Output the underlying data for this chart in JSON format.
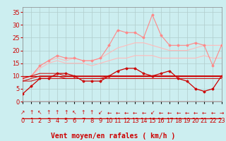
{
  "x": [
    0,
    1,
    2,
    3,
    4,
    5,
    6,
    7,
    8,
    9,
    10,
    11,
    12,
    13,
    14,
    15,
    16,
    17,
    18,
    19,
    20,
    21,
    22,
    23
  ],
  "background_color": "#cceef0",
  "grid_color": "#b0cccc",
  "xlabel": "Vent moyen/en rafales ( km/h )",
  "xlabel_color": "#cc0000",
  "xlabel_fontsize": 7,
  "ylim": [
    0,
    37
  ],
  "yticks": [
    0,
    5,
    10,
    15,
    20,
    25,
    30,
    35
  ],
  "line_spiky": [
    9,
    10,
    14,
    16,
    18,
    17,
    17,
    16,
    16,
    17,
    22,
    28,
    27,
    27,
    25,
    34,
    26,
    22,
    22,
    22,
    23,
    22,
    14,
    22
  ],
  "line_spiky_color": "#ff8888",
  "line_upper_trend": [
    9,
    10,
    14,
    16,
    17,
    16,
    17,
    16,
    16,
    17,
    19,
    21,
    22,
    23,
    23,
    22,
    21,
    20,
    20,
    20,
    21,
    22,
    22,
    22
  ],
  "line_upper_trend_color": "#ffbbbb",
  "line_lower_trend": [
    9,
    10,
    13,
    15,
    16,
    15,
    15,
    15,
    14,
    15,
    16,
    17,
    17,
    18,
    18,
    18,
    17,
    17,
    17,
    17,
    17,
    18,
    17,
    17
  ],
  "line_lower_trend_color": "#ffbbbb",
  "line_mid_red": [
    3,
    6,
    9,
    9,
    11,
    11,
    10,
    8,
    8,
    8,
    10,
    12,
    13,
    13,
    11,
    10,
    11,
    12,
    9,
    8,
    5,
    4,
    5,
    10
  ],
  "line_mid_red_color": "#cc0000",
  "line_flat1": [
    8,
    8,
    9,
    9,
    9,
    9,
    9,
    9,
    9,
    9,
    9,
    9,
    9,
    9,
    9,
    9,
    9,
    9,
    9,
    9,
    9,
    9,
    9,
    9
  ],
  "line_flat1_color": "#cc0000",
  "line_flat2": [
    8,
    9,
    10,
    10,
    10,
    9,
    9,
    9,
    9,
    9,
    10,
    10,
    10,
    10,
    10,
    10,
    10,
    10,
    10,
    10,
    10,
    10,
    10,
    10
  ],
  "line_flat2_color": "#cc0000",
  "line_flat3": [
    9,
    10,
    11,
    11,
    11,
    10,
    10,
    10,
    10,
    10,
    10,
    10,
    10,
    10,
    10,
    10,
    10,
    10,
    10,
    10,
    10,
    10,
    10,
    10
  ],
  "line_flat3_color": "#cc0000",
  "tick_label_color": "#cc0000",
  "tick_label_fontsize": 6,
  "arrow_chars": [
    "↗",
    "↑",
    "↖",
    "↑",
    "↑",
    "↑",
    "↖",
    "↑",
    "↑",
    "↙",
    "←",
    "←",
    "←",
    "←",
    "←",
    "↙",
    "←",
    "←",
    "←",
    "←",
    "←",
    "←",
    "←",
    "→"
  ]
}
